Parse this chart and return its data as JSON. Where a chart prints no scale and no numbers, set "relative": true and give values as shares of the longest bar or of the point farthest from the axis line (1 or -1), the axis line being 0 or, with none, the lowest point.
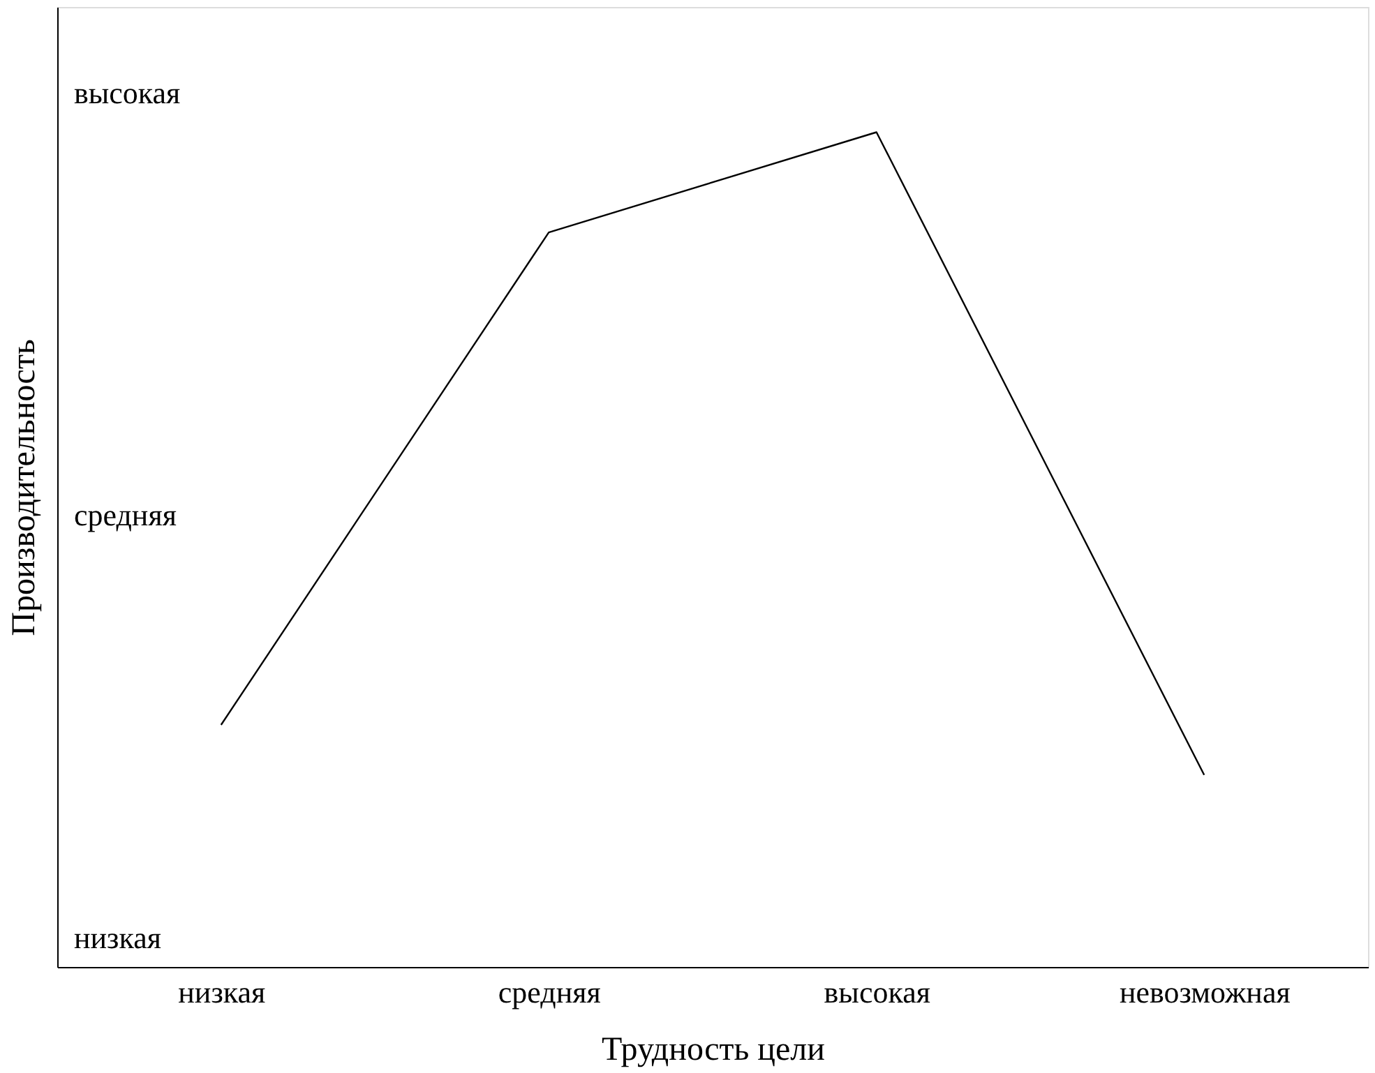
{
  "chart_data": {
    "type": "line",
    "xlabel": "Трудность цели",
    "ylabel": "Производительность",
    "categories": [
      "низкая",
      "средняя",
      "высокая",
      "невозможная"
    ],
    "values": [
      0.29,
      0.88,
      1,
      0.23
    ],
    "color": "#000000",
    "relative": true,
    "annotations": [
      "высокая",
      "средняя",
      "низкая"
    ],
    "grid": false,
    "marker": "none",
    "line_style": "solid"
  }
}
